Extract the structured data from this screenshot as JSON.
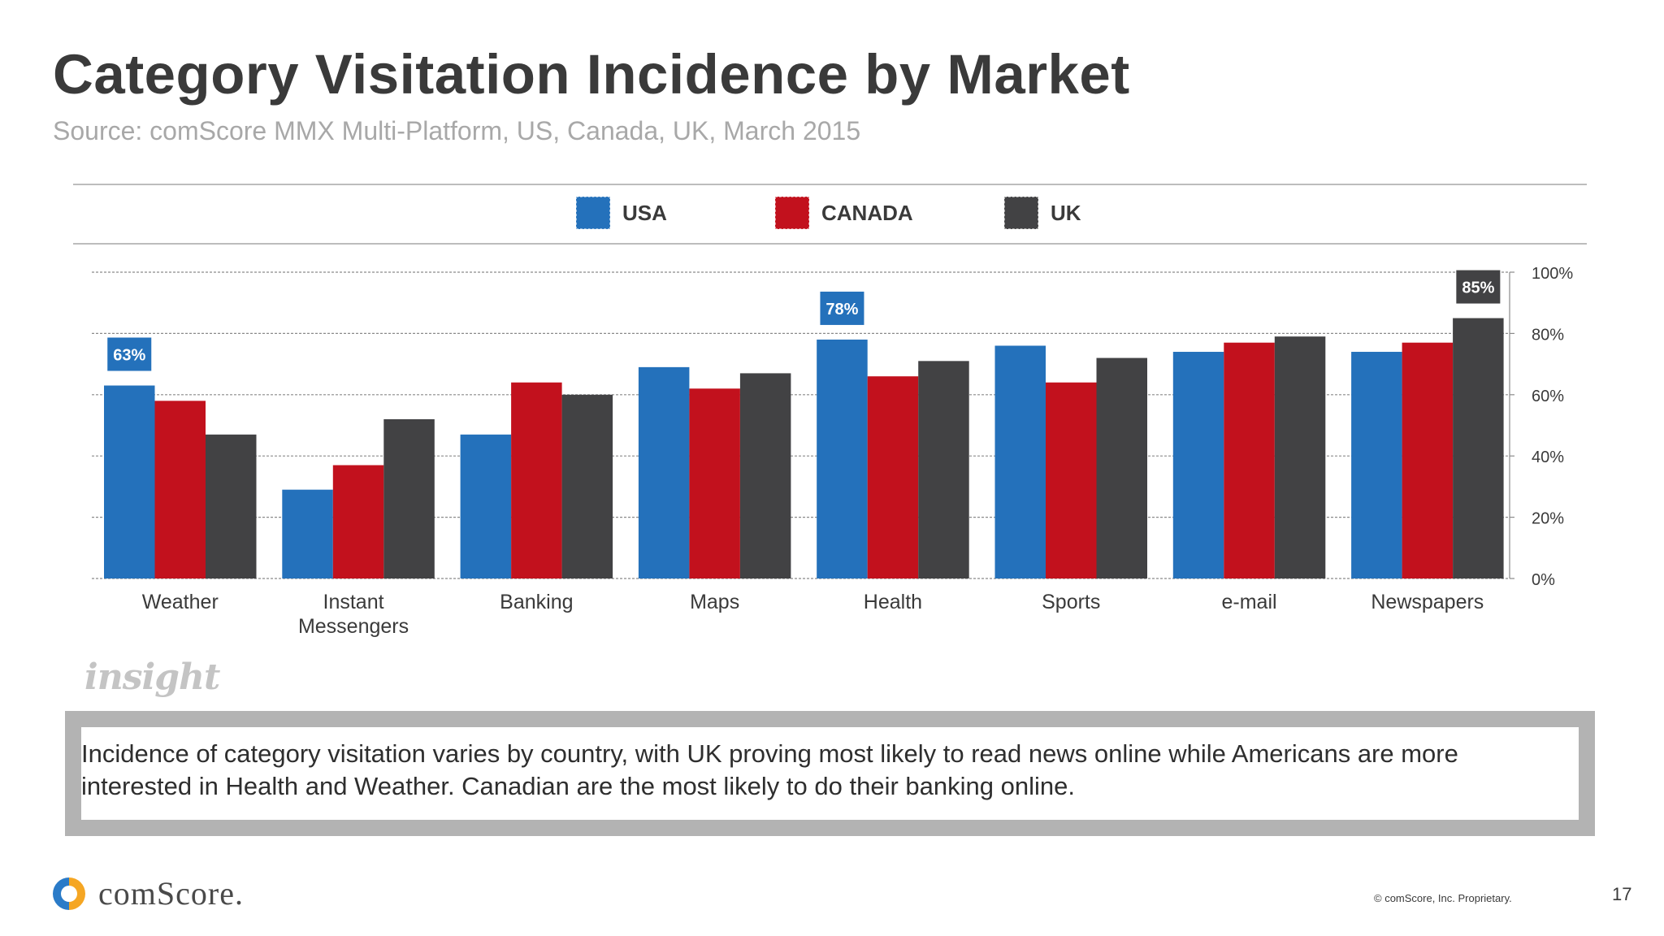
{
  "slide": {
    "title": "Category Visitation Incidence by Market",
    "subtitle": "Source: comScore MMX Multi-Platform, US, Canada, UK, March 2015",
    "insight_logo": "insight",
    "insight_text": "Incidence of category visitation varies by country, with UK proving most likely to read news online while Americans are more interested in Health and Weather. Canadian are the most likely to do their banking online.",
    "brand": "comScore.",
    "copyright": "© comScore, Inc. Proprietary.",
    "page_number": "17"
  },
  "chart_data": {
    "type": "bar",
    "categories": [
      "Weather",
      "Instant Messengers",
      "Banking",
      "Maps",
      "Health",
      "Sports",
      "e-mail",
      "Newspapers"
    ],
    "series": [
      {
        "name": "USA",
        "color": "#2471bb",
        "values": [
          63,
          29,
          47,
          69,
          78,
          76,
          74,
          74
        ]
      },
      {
        "name": "CANADA",
        "color": "#c2111d",
        "values": [
          58,
          37,
          64,
          62,
          66,
          64,
          77,
          77
        ]
      },
      {
        "name": "UK",
        "color": "#424244",
        "values": [
          47,
          52,
          60,
          67,
          71,
          72,
          79,
          85
        ]
      }
    ],
    "data_labels": [
      {
        "series": 0,
        "category": 0,
        "text": "63%"
      },
      {
        "series": 0,
        "category": 4,
        "text": "78%"
      },
      {
        "series": 2,
        "category": 7,
        "text": "85%"
      }
    ],
    "ylim": [
      0,
      100
    ],
    "yticks": [
      "0%",
      "20%",
      "40%",
      "60%",
      "80%",
      "100%"
    ],
    "ytick_values": [
      0,
      20,
      40,
      60,
      80,
      100
    ],
    "yaxis_position": "right",
    "grid": true,
    "legend_position": "top"
  }
}
